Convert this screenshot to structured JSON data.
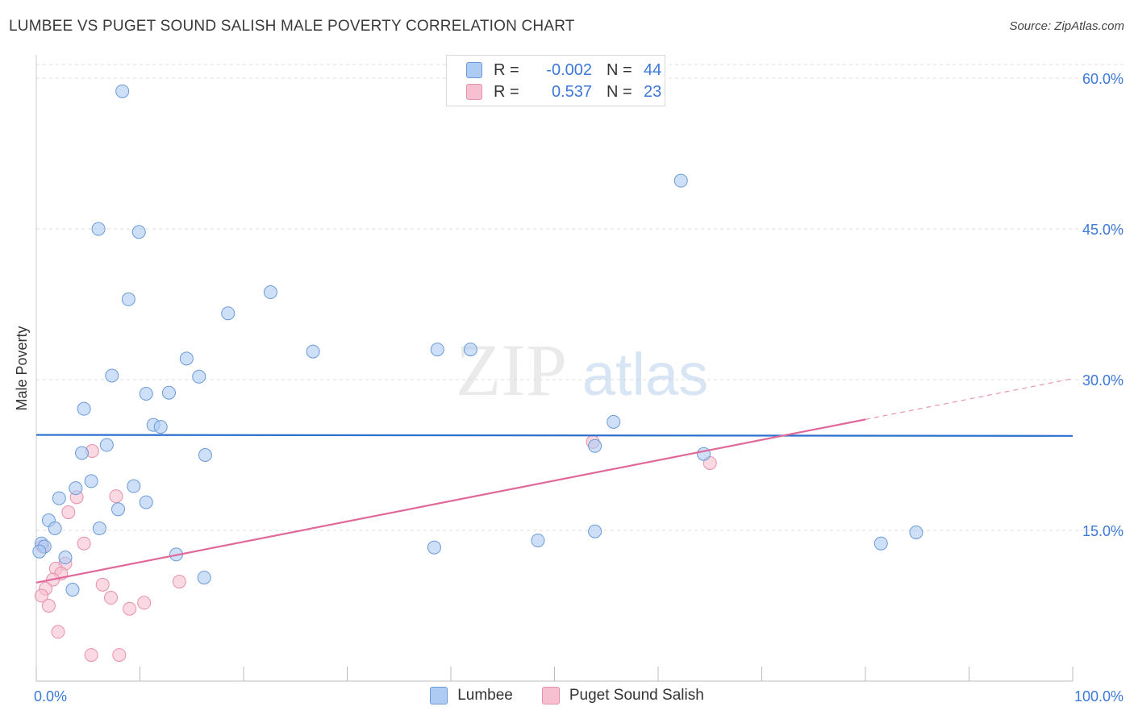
{
  "header": {
    "title": "LUMBEE VS PUGET SOUND SALISH MALE POVERTY CORRELATION CHART",
    "source": "Source: ZipAtlas.com"
  },
  "legend": {
    "row1": {
      "r_label": "R =",
      "r_value": "-0.002",
      "n_label": "N =",
      "n_value": "44"
    },
    "row2": {
      "r_label": "R =",
      "r_value": "0.537",
      "n_label": "N =",
      "n_value": "23"
    }
  },
  "colors": {
    "lumbee_fill": "#aecbf3",
    "lumbee_stroke": "#6a9ad8",
    "lumbee_line": "#2b6fcf",
    "salish_fill": "#f7c0d0",
    "salish_stroke": "#e690ab",
    "salish_line": "#e0689a",
    "grid": "#dddddd",
    "tick_text": "#3c78d8"
  },
  "chart_data": {
    "type": "scatter",
    "title": "LUMBEE VS PUGET SOUND SALISH MALE POVERTY CORRELATION CHART",
    "xlabel": "",
    "ylabel": "Male Poverty",
    "xlim": [
      0,
      100
    ],
    "ylim": [
      0,
      60
    ],
    "x_tick_labels": [
      "0.0%",
      "100.0%"
    ],
    "y_ticks": [
      15,
      30,
      45,
      60
    ],
    "y_tick_labels": [
      "15.0%",
      "30.0%",
      "45.0%",
      "60.0%"
    ],
    "watermark": {
      "zip": "ZIP",
      "atlas": "atlas"
    },
    "series": [
      {
        "name": "Lumbee",
        "points": [
          {
            "x": 8.3,
            "y": 58.7
          },
          {
            "x": 6.0,
            "y": 45.0
          },
          {
            "x": 9.9,
            "y": 44.7
          },
          {
            "x": 62.2,
            "y": 49.8
          },
          {
            "x": 22.6,
            "y": 38.7
          },
          {
            "x": 8.9,
            "y": 38.0
          },
          {
            "x": 18.5,
            "y": 36.6
          },
          {
            "x": 26.7,
            "y": 32.8
          },
          {
            "x": 38.7,
            "y": 33.0
          },
          {
            "x": 41.9,
            "y": 33.0
          },
          {
            "x": 14.5,
            "y": 32.1
          },
          {
            "x": 7.3,
            "y": 30.4
          },
          {
            "x": 15.7,
            "y": 30.3
          },
          {
            "x": 10.6,
            "y": 28.6
          },
          {
            "x": 12.8,
            "y": 28.7
          },
          {
            "x": 4.6,
            "y": 27.1
          },
          {
            "x": 11.3,
            "y": 25.5
          },
          {
            "x": 12.0,
            "y": 25.3
          },
          {
            "x": 55.7,
            "y": 25.8
          },
          {
            "x": 6.8,
            "y": 23.5
          },
          {
            "x": 4.4,
            "y": 22.7
          },
          {
            "x": 16.3,
            "y": 22.5
          },
          {
            "x": 53.9,
            "y": 23.4
          },
          {
            "x": 64.4,
            "y": 22.6
          },
          {
            "x": 5.3,
            "y": 19.9
          },
          {
            "x": 3.8,
            "y": 19.2
          },
          {
            "x": 9.4,
            "y": 19.4
          },
          {
            "x": 2.2,
            "y": 18.2
          },
          {
            "x": 10.6,
            "y": 17.8
          },
          {
            "x": 7.9,
            "y": 17.1
          },
          {
            "x": 1.2,
            "y": 16.0
          },
          {
            "x": 1.8,
            "y": 15.2
          },
          {
            "x": 6.1,
            "y": 15.2
          },
          {
            "x": 53.9,
            "y": 14.9
          },
          {
            "x": 48.4,
            "y": 14.0
          },
          {
            "x": 84.9,
            "y": 14.8
          },
          {
            "x": 0.5,
            "y": 13.7
          },
          {
            "x": 0.8,
            "y": 13.4
          },
          {
            "x": 38.4,
            "y": 13.3
          },
          {
            "x": 81.5,
            "y": 13.7
          },
          {
            "x": 0.3,
            "y": 12.9
          },
          {
            "x": 2.8,
            "y": 12.3
          },
          {
            "x": 13.5,
            "y": 12.6
          },
          {
            "x": 16.2,
            "y": 10.3
          },
          {
            "x": 3.5,
            "y": 9.1
          }
        ]
      },
      {
        "name": "Puget Sound Salish",
        "points": [
          {
            "x": 5.4,
            "y": 22.9
          },
          {
            "x": 53.7,
            "y": 23.8
          },
          {
            "x": 65.0,
            "y": 21.7
          },
          {
            "x": 7.7,
            "y": 18.4
          },
          {
            "x": 3.9,
            "y": 18.3
          },
          {
            "x": 3.1,
            "y": 16.8
          },
          {
            "x": 4.6,
            "y": 13.7
          },
          {
            "x": 0.6,
            "y": 13.4
          },
          {
            "x": 2.8,
            "y": 11.7
          },
          {
            "x": 1.9,
            "y": 11.2
          },
          {
            "x": 2.4,
            "y": 10.7
          },
          {
            "x": 1.6,
            "y": 10.1
          },
          {
            "x": 13.8,
            "y": 9.9
          },
          {
            "x": 6.4,
            "y": 9.6
          },
          {
            "x": 0.9,
            "y": 9.2
          },
          {
            "x": 0.5,
            "y": 8.5
          },
          {
            "x": 7.2,
            "y": 8.3
          },
          {
            "x": 10.4,
            "y": 7.8
          },
          {
            "x": 1.2,
            "y": 7.5
          },
          {
            "x": 9.0,
            "y": 7.2
          },
          {
            "x": 2.1,
            "y": 4.9
          },
          {
            "x": 5.3,
            "y": 2.6
          },
          {
            "x": 8.0,
            "y": 2.6
          }
        ]
      }
    ],
    "trend_lines": [
      {
        "name": "Lumbee",
        "x0": 0,
        "y0": 24.5,
        "x1": 100,
        "y1": 24.4,
        "dashed_from": null
      },
      {
        "name": "Puget Sound Salish",
        "x0": 0,
        "y0": 9.8,
        "x1": 100,
        "y1": 30.1,
        "dashed_from": 80
      }
    ]
  },
  "bottom_legend": {
    "item1": "Lumbee",
    "item2": "Puget Sound Salish"
  }
}
